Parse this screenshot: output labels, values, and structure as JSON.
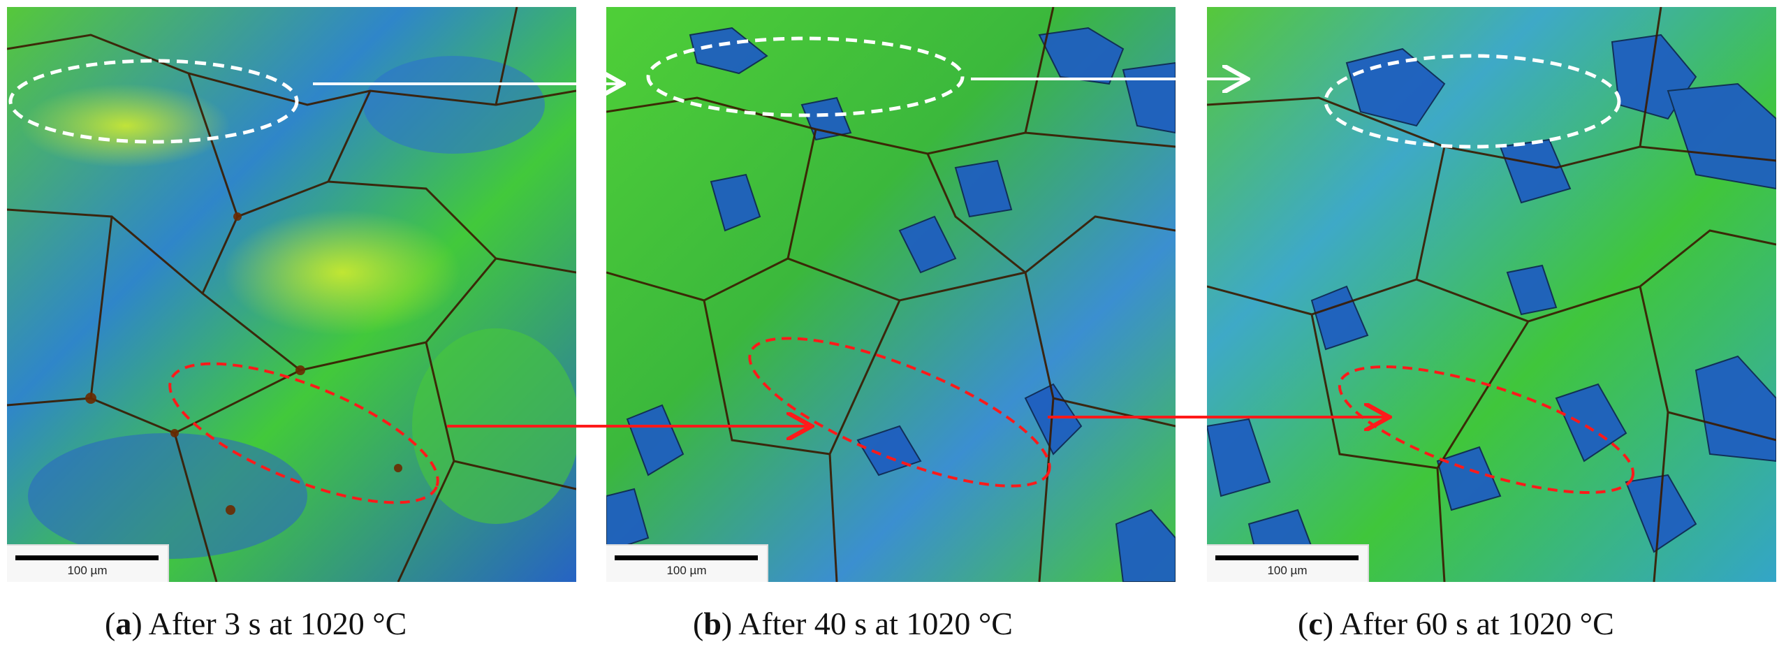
{
  "panels": [
    {
      "id": "a",
      "letter": "a",
      "caption": "After 3 s at 1020 °C",
      "scalebar_label": "100 µm"
    },
    {
      "id": "b",
      "letter": "b",
      "caption": "After 40 s at 1020 °C",
      "scalebar_label": "100 µm"
    },
    {
      "id": "c",
      "letter": "c",
      "caption": "After 60 s at 1020 °C",
      "scalebar_label": "100 µm"
    }
  ],
  "colors": {
    "green": "#39d12a",
    "yellow_green": "#b7e81e",
    "blue": "#1f5fbf",
    "dark_blue": "#174a9e",
    "boundary": "#3a1a00",
    "highlight_white": "#ffffff",
    "highlight_red": "#ff1a1a"
  }
}
